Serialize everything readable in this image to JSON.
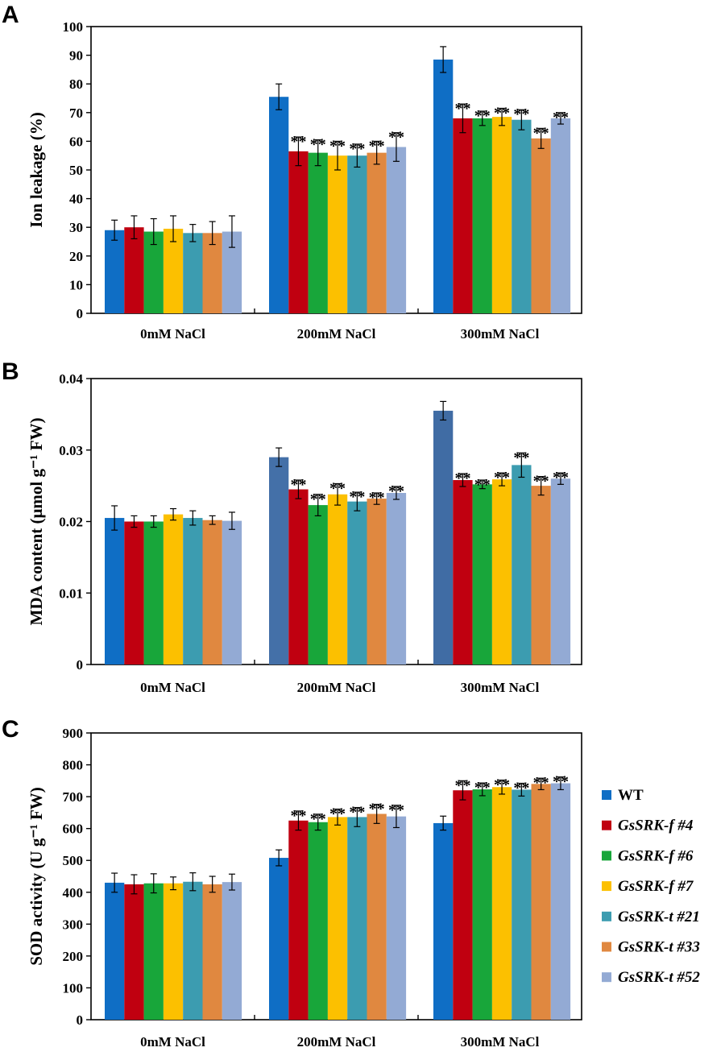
{
  "chart_data": [
    {
      "panel": "A",
      "type": "bar",
      "title": "",
      "ylabel": "Ion leakage (%)",
      "xlabel": "",
      "ylim": [
        0,
        100
      ],
      "yticks": [
        0,
        10,
        20,
        30,
        40,
        50,
        60,
        70,
        80,
        90,
        100
      ],
      "ytick_labels": [
        "0",
        "10",
        "20",
        "30",
        "40",
        "50",
        "60",
        "70",
        "80",
        "90",
        "100"
      ],
      "categories": [
        "0mM NaCl",
        "200mM NaCl",
        "300mM NaCl"
      ],
      "series": [
        {
          "name": "WT",
          "values": [
            29,
            75.5,
            88.5
          ],
          "errors": [
            3.5,
            4.5,
            4.5
          ],
          "sig": [
            "",
            "",
            ""
          ]
        },
        {
          "name": "GsSRK-f #4",
          "values": [
            30,
            56.5,
            68
          ],
          "errors": [
            4,
            5,
            5
          ],
          "sig": [
            "",
            "**",
            "**"
          ]
        },
        {
          "name": "GsSRK-f #6",
          "values": [
            28.5,
            56,
            68
          ],
          "errors": [
            4.5,
            4.5,
            2.5
          ],
          "sig": [
            "",
            "**",
            "**"
          ]
        },
        {
          "name": "GsSRK-f #7",
          "values": [
            29.5,
            55,
            68.5
          ],
          "errors": [
            4.5,
            5,
            3
          ],
          "sig": [
            "",
            "**",
            "**"
          ]
        },
        {
          "name": "GsSRK-t #21",
          "values": [
            28,
            55,
            67.5
          ],
          "errors": [
            3,
            4,
            3.5
          ],
          "sig": [
            "",
            "**",
            "**"
          ]
        },
        {
          "name": "GsSRK-t #33",
          "values": [
            28,
            56,
            61
          ],
          "errors": [
            4,
            4,
            3.5
          ],
          "sig": [
            "",
            "**",
            "**"
          ]
        },
        {
          "name": "GsSRK-t #52",
          "values": [
            28.5,
            58,
            68
          ],
          "errors": [
            5.5,
            5,
            2
          ],
          "sig": [
            "",
            "**",
            "**"
          ]
        }
      ]
    },
    {
      "panel": "B",
      "type": "bar",
      "title": "",
      "ylabel": "MDA content (μmol g⁻¹ FW)",
      "xlabel": "",
      "ylim": [
        0,
        0.04
      ],
      "yticks": [
        0,
        0.01,
        0.02,
        0.03,
        0.04
      ],
      "ytick_labels": [
        "0",
        "0.01",
        "0.02",
        "0.03",
        "0.04"
      ],
      "categories": [
        "0mM NaCl",
        "200mM NaCl",
        "300mM NaCl"
      ],
      "series": [
        {
          "name": "WT",
          "values": [
            0.0205,
            0.029,
            0.0355
          ],
          "errors": [
            0.0017,
            0.0013,
            0.0013
          ],
          "sig": [
            "",
            "",
            ""
          ]
        },
        {
          "name": "GsSRK-f #4",
          "values": [
            0.02,
            0.0245,
            0.0258
          ],
          "errors": [
            0.0008,
            0.0013,
            0.0009
          ],
          "sig": [
            "",
            "**",
            "**"
          ]
        },
        {
          "name": "GsSRK-f #6",
          "values": [
            0.02,
            0.0223,
            0.0252
          ],
          "errors": [
            0.0008,
            0.0015,
            0.0006
          ],
          "sig": [
            "",
            "**",
            "**"
          ]
        },
        {
          "name": "GsSRK-f #7",
          "values": [
            0.021,
            0.0238,
            0.0259
          ],
          "errors": [
            0.0008,
            0.0015,
            0.0009
          ],
          "sig": [
            "",
            "**",
            "**"
          ]
        },
        {
          "name": "GsSRK-t #21",
          "values": [
            0.0205,
            0.0228,
            0.0279
          ],
          "errors": [
            0.001,
            0.0013,
            0.0017
          ],
          "sig": [
            "",
            "**",
            "**"
          ]
        },
        {
          "name": "GsSRK-t #33",
          "values": [
            0.0202,
            0.0232,
            0.025
          ],
          "errors": [
            0.0006,
            0.0008,
            0.0013
          ],
          "sig": [
            "",
            "**",
            "**"
          ]
        },
        {
          "name": "GsSRK-t #52",
          "values": [
            0.0201,
            0.024,
            0.026
          ],
          "errors": [
            0.0012,
            0.0009,
            0.0008
          ],
          "sig": [
            "",
            "**",
            "**"
          ]
        }
      ]
    },
    {
      "panel": "C",
      "type": "bar",
      "title": "",
      "ylabel": "SOD activity (U g⁻¹ FW)",
      "xlabel": "",
      "ylim": [
        0,
        900
      ],
      "yticks": [
        0,
        100,
        200,
        300,
        400,
        500,
        600,
        700,
        800,
        900
      ],
      "ytick_labels": [
        "0",
        "100",
        "200",
        "300",
        "400",
        "500",
        "600",
        "700",
        "800",
        "900"
      ],
      "categories": [
        "0mM NaCl",
        "200mM NaCl",
        "300mM NaCl"
      ],
      "legend": {
        "placement": "right",
        "entries": [
          "WT",
          "GsSRK-f #4",
          "GsSRK-f #6",
          "GsSRK-f #7",
          "GsSRK-t #21",
          "GsSRK-t #33",
          "GsSRK-t #52"
        ]
      },
      "series": [
        {
          "name": "WT",
          "values": [
            430,
            508,
            617
          ],
          "errors": [
            30,
            25,
            22
          ],
          "sig": [
            "",
            "",
            ""
          ]
        },
        {
          "name": "GsSRK-f #4",
          "values": [
            425,
            625,
            720
          ],
          "errors": [
            30,
            30,
            30
          ],
          "sig": [
            "",
            "**",
            "**"
          ]
        },
        {
          "name": "GsSRK-f #6",
          "values": [
            428,
            620,
            723
          ],
          "errors": [
            30,
            25,
            20
          ],
          "sig": [
            "",
            "**",
            "**"
          ]
        },
        {
          "name": "GsSRK-f #7",
          "values": [
            428,
            636,
            730
          ],
          "errors": [
            20,
            25,
            22
          ],
          "sig": [
            "",
            "**",
            "**"
          ]
        },
        {
          "name": "GsSRK-t #21",
          "values": [
            433,
            636,
            722
          ],
          "errors": [
            28,
            30,
            20
          ],
          "sig": [
            "",
            "**",
            "**"
          ]
        },
        {
          "name": "GsSRK-t #33",
          "values": [
            425,
            646,
            740
          ],
          "errors": [
            25,
            30,
            18
          ],
          "sig": [
            "",
            "**",
            "**"
          ]
        },
        {
          "name": "GsSRK-t #52",
          "values": [
            432,
            638,
            742
          ],
          "errors": [
            25,
            35,
            20
          ],
          "sig": [
            "",
            "**",
            "**"
          ]
        }
      ]
    }
  ],
  "colors": [
    "#0f6ec5",
    "#c00010",
    "#18a63a",
    "#fcc000",
    "#3c9cb0",
    "#e08840",
    "#93aad4"
  ],
  "wt_colors_panel_b": [
    "#0f6ec5",
    "#4470a8",
    "#406ca4"
  ]
}
